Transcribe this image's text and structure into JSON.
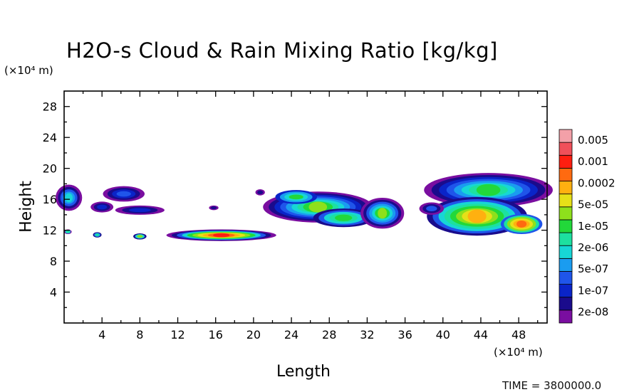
{
  "chart_data": {
    "type": "heatmap",
    "title": "H2O-s Cloud & Rain Mixing Ratio [kg/kg]",
    "xlabel": "Length",
    "ylabel": "Height",
    "x_unit": "(×10⁴ m)",
    "y_unit": "(×10⁴ m)",
    "x_ticks": [
      "4",
      "8",
      "12",
      "16",
      "20",
      "24",
      "28",
      "32",
      "36",
      "40",
      "44",
      "48"
    ],
    "y_ticks": [
      "4",
      "8",
      "12",
      "16",
      "20",
      "24",
      "28"
    ],
    "xlim": [
      0,
      51
    ],
    "ylim": [
      0,
      30
    ],
    "colorbar": {
      "labels": [
        "0.005",
        "0.001",
        "0.0002",
        "5e-05",
        "1e-05",
        "2e-06",
        "5e-07",
        "1e-07",
        "2e-08"
      ],
      "colors": [
        "#7a0ea0",
        "#1a0b8c",
        "#0a24c8",
        "#1f55ea",
        "#1a9cf0",
        "#17d6d6",
        "#1de0a0",
        "#22d83a",
        "#8ee01c",
        "#e6e018",
        "#ffb010",
        "#ff6a10",
        "#ff1e10",
        "#f0505a",
        "#f3a0a8"
      ]
    },
    "regions": [
      {
        "x": [
          0.2,
          1.2
        ],
        "y": [
          14.3,
          17.9
        ],
        "level": "2e-06"
      },
      {
        "x": [
          3.2,
          8.0
        ],
        "y": [
          13.8,
          17.8
        ],
        "level": "1e-07"
      },
      {
        "x": [
          5.3,
          10.7
        ],
        "y": [
          13.8,
          15.4
        ],
        "level": "1e-07"
      },
      {
        "x": [
          11.0,
          22.2
        ],
        "y": [
          10.7,
          12.1
        ],
        "level": "0.001"
      },
      {
        "x": [
          21.0,
          33.5
        ],
        "y": [
          11.7,
          17.2
        ],
        "level": "1e-05"
      },
      {
        "x": [
          31.4,
          36.5
        ],
        "y": [
          11.9,
          16.1
        ],
        "level": "1e-05"
      },
      {
        "x": [
          37.8,
          51.0
        ],
        "y": [
          10.8,
          19.4
        ],
        "level": "0.0002"
      }
    ]
  },
  "time_label": "TIME = 3800000.0"
}
